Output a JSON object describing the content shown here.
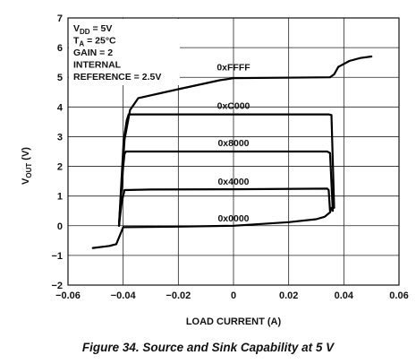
{
  "caption": "Figure 34. Source and Sink Capability at 5 V",
  "chart_data": {
    "type": "line",
    "xlabel": "LOAD CURRENT (A)",
    "ylabel": {
      "main": "V",
      "sub": "OUT",
      "unit": " (V)"
    },
    "xlim": [
      -0.06,
      0.06
    ],
    "ylim": [
      -2,
      7
    ],
    "xticks": [
      -0.06,
      -0.04,
      -0.02,
      0,
      0.02,
      0.04,
      0.06
    ],
    "xtick_labels": [
      "−0.06",
      "−0.04",
      "−0.02",
      "0",
      "0.02",
      "0.04",
      "0.06"
    ],
    "yticks": [
      -2,
      -1,
      0,
      1,
      2,
      3,
      4,
      5,
      6,
      7
    ],
    "ytick_labels": [
      "−2",
      "−1",
      "0",
      "1",
      "2",
      "3",
      "4",
      "5",
      "6",
      "7"
    ],
    "grid": true,
    "conditions": [
      {
        "main": "V",
        "sub": "DD",
        "rest": " = 5V"
      },
      {
        "main": "T",
        "sub": "A",
        "rest": " = 25°C"
      },
      {
        "main": "GAIN = 2",
        "sub": "",
        "rest": ""
      },
      {
        "main": "INTERNAL",
        "sub": "",
        "rest": ""
      },
      {
        "main": "REFERENCE = 2.5V",
        "sub": "",
        "rest": ""
      }
    ],
    "series": [
      {
        "name": "0xFFFF",
        "label_xy": [
          0.0,
          5.35
        ],
        "x": [
          -0.0415,
          -0.0395,
          -0.0375,
          -0.0345,
          -0.02,
          -0.005,
          0.0,
          0.035,
          0.0365,
          0.038,
          0.042,
          0.046,
          0.05
        ],
        "y": [
          0.0,
          2.9,
          3.9,
          4.3,
          4.6,
          4.9,
          4.97,
          5.0,
          5.1,
          5.35,
          5.55,
          5.65,
          5.7
        ]
      },
      {
        "name": "0xC000",
        "label_xy": [
          0.0,
          4.05
        ],
        "x": [
          -0.0415,
          -0.0398,
          -0.0387,
          -0.038,
          -0.03,
          0.0,
          0.0345,
          0.0355,
          0.0365
        ],
        "y": [
          0.0,
          2.9,
          3.55,
          3.75,
          3.75,
          3.75,
          3.75,
          3.73,
          0.6
        ]
      },
      {
        "name": "0x8000",
        "label_xy": [
          0.0,
          2.8
        ],
        "x": [
          -0.0415,
          -0.04,
          -0.0395,
          -0.039,
          -0.02,
          0.0,
          0.034,
          0.035,
          0.036
        ],
        "y": [
          0.0,
          2.0,
          2.42,
          2.5,
          2.5,
          2.5,
          2.5,
          2.45,
          0.5
        ]
      },
      {
        "name": "0x4000",
        "label_xy": [
          0.0,
          1.5
        ],
        "x": [
          -0.0415,
          -0.0405,
          -0.0395,
          -0.03,
          0.0,
          0.034,
          0.0345,
          0.035
        ],
        "y": [
          0.0,
          0.8,
          1.2,
          1.22,
          1.23,
          1.25,
          1.2,
          0.5
        ]
      },
      {
        "name": "0x0000",
        "label_xy": [
          0.0,
          0.27
        ],
        "x": [
          -0.051,
          -0.045,
          -0.0425,
          -0.04,
          -0.02,
          0.0,
          0.02,
          0.03,
          0.033,
          0.035,
          0.0355
        ],
        "y": [
          -0.75,
          -0.68,
          -0.62,
          -0.05,
          -0.03,
          0.0,
          0.12,
          0.22,
          0.3,
          0.45,
          0.6
        ]
      }
    ]
  }
}
